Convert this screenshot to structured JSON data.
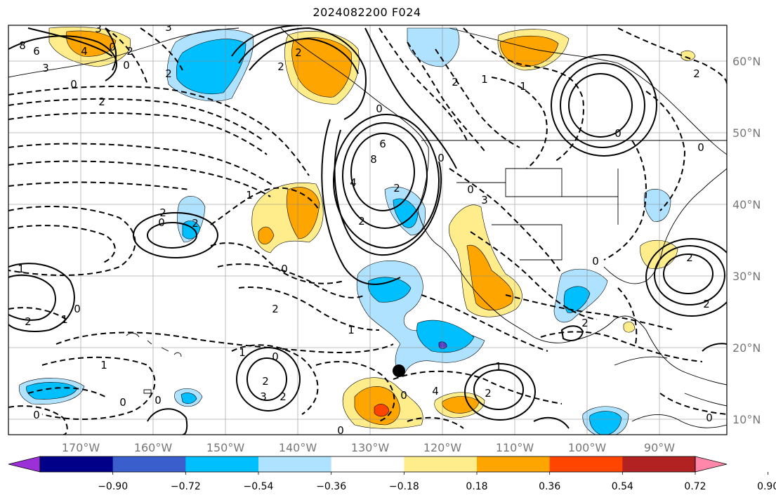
{
  "title": "2024082200 F024",
  "lon_ticks": [
    "170°W",
    "160°W",
    "150°W",
    "140°W",
    "130°W",
    "120°W",
    "110°W",
    "100°W",
    "90°W"
  ],
  "lat_ticks": [
    "60°N",
    "50°N",
    "40°N",
    "30°N",
    "20°N",
    "10°N"
  ],
  "colorbar": {
    "tick_labels": [
      "−0.90",
      "−0.72",
      "−0.54",
      "−0.36",
      "−0.18",
      "0.18",
      "0.36",
      "0.54",
      "0.72",
      "0.90"
    ],
    "colors": [
      "#9b30d9",
      "#000088",
      "#3a5fcd",
      "#00bfff",
      "#aee2ff",
      "#ffffff",
      "#ffec8b",
      "#ffa500",
      "#ff4500",
      "#b22222",
      "#ff88aa"
    ]
  },
  "contour_labels": [
    "8",
    "6",
    "4",
    "3",
    "3",
    "0",
    "2",
    "3",
    "2",
    "0",
    "0",
    "2",
    "6",
    "8",
    "4",
    "0",
    "0",
    "3",
    "2",
    "2",
    "0",
    "1",
    "2",
    "2",
    "2",
    "1",
    "0",
    "2",
    "1",
    "2",
    "1",
    "0",
    "0",
    "2",
    "2",
    "1",
    "1",
    "0",
    "0",
    "1",
    "0",
    "2",
    "3",
    "2",
    "0",
    "4",
    "2",
    "1",
    "0",
    "2",
    "0",
    "0",
    "2",
    "2",
    "2",
    "1",
    "0",
    "0",
    "0"
  ],
  "marker": {
    "name": "black-dot"
  }
}
